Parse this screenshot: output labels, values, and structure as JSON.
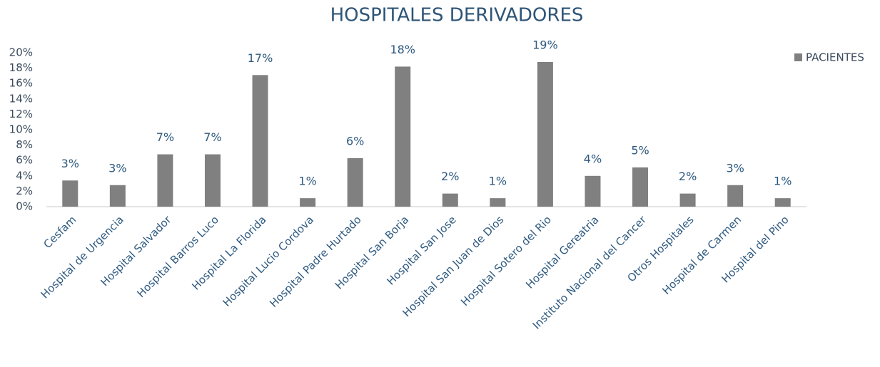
{
  "chart_data": {
    "type": "bar",
    "title": "HOSPITALES DERIVADORES",
    "categories": [
      "Cesfam",
      "Hospital de Urgencia",
      "Hospital Salvador",
      "Hospital Barros Luco",
      "Hospital La Florida",
      "Hospital Lucio Cordova",
      "Hospital Padre Hurtado",
      "Hospital San Borja",
      "Hospital San Jose",
      "Hospital San Juan de Dios",
      "Hospital Sotero del Rio",
      "Hospital Gereatria",
      "Instituto Nacional del Cancer",
      "Otros Hospitales",
      "Hospital de Carmen",
      "Hospital del Pino"
    ],
    "series": [
      {
        "name": "PACIENTES",
        "color": "#808080",
        "values": [
          3.4,
          2.8,
          6.8,
          6.8,
          17.1,
          1.1,
          6.3,
          18.2,
          1.7,
          1.1,
          18.8,
          4.0,
          5.1,
          1.7,
          2.8,
          1.1
        ],
        "value_labels": [
          "3%",
          "3%",
          "7%",
          "7%",
          "17%",
          "1%",
          "6%",
          "18%",
          "2%",
          "1%",
          "19%",
          "4%",
          "5%",
          "2%",
          "3%",
          "1%"
        ]
      }
    ],
    "ylim": [
      0,
      20
    ],
    "yticks": [
      {
        "value": 0,
        "label": "0%"
      },
      {
        "value": 2,
        "label": "2%"
      },
      {
        "value": 4,
        "label": "4%"
      },
      {
        "value": 6,
        "label": "6%"
      },
      {
        "value": 8,
        "label": "8%"
      },
      {
        "value": 10,
        "label": "10%"
      },
      {
        "value": 12,
        "label": "12%"
      },
      {
        "value": 14,
        "label": "14%"
      },
      {
        "value": 16,
        "label": "16%"
      },
      {
        "value": 18,
        "label": "18%"
      },
      {
        "value": 20,
        "label": "20%"
      }
    ],
    "grid": false,
    "legend": "top-right"
  }
}
